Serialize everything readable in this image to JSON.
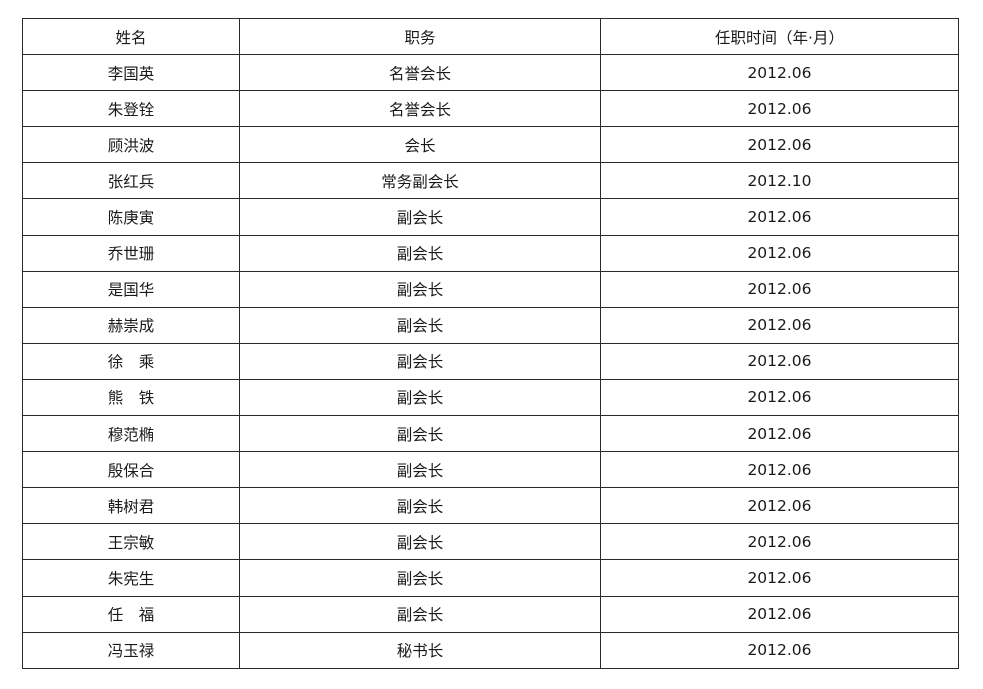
{
  "table": {
    "headers": [
      "姓名",
      "职务",
      "任职时间（年·月）"
    ],
    "rows": [
      [
        "李国英",
        "名誉会长",
        "2012.06"
      ],
      [
        "朱登铨",
        "名誉会长",
        "2012.06"
      ],
      [
        "顾洪波",
        "会长",
        "2012.06"
      ],
      [
        "张红兵",
        "常务副会长",
        "2012.10"
      ],
      [
        "陈庚寅",
        "副会长",
        "2012.06"
      ],
      [
        "乔世珊",
        "副会长",
        "2012.06"
      ],
      [
        "是国华",
        "副会长",
        "2012.06"
      ],
      [
        "赫崇成",
        "副会长",
        "2012.06"
      ],
      [
        "徐　乘",
        "副会长",
        "2012.06"
      ],
      [
        "熊　铁",
        "副会长",
        "2012.06"
      ],
      [
        "穆范椭",
        "副会长",
        "2012.06"
      ],
      [
        "殷保合",
        "副会长",
        "2012.06"
      ],
      [
        "韩树君",
        "副会长",
        "2012.06"
      ],
      [
        "王宗敏",
        "副会长",
        "2012.06"
      ],
      [
        "朱宪生",
        "副会长",
        "2012.06"
      ],
      [
        "任　福",
        "副会长",
        "2012.06"
      ],
      [
        "冯玉禄",
        "秘书长",
        "2012.06"
      ]
    ]
  }
}
